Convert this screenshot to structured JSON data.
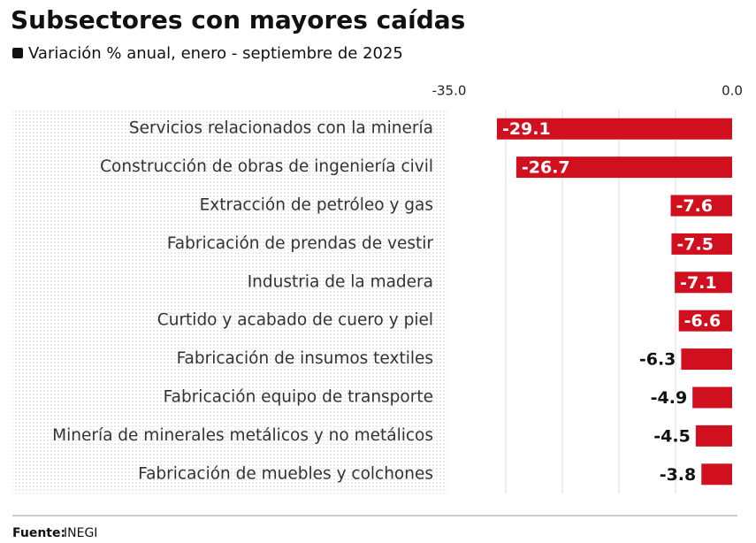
{
  "chart_data": {
    "type": "hbar",
    "title": "Subsectores con mayores caídas",
    "subtitle": "Variación % anual, enero - septiembre de 2025",
    "categories": [
      "Servicios relacionados con la minería",
      "Construcción de obras de ingeniería civil",
      "Extracción de petróleo y gas",
      "Fabricación de prendas de vestir",
      "Industria de la madera",
      "Curtido y acabado de cuero y piel",
      "Fabricación de insumos textiles",
      "Fabricación equipo de transporte",
      "Minería de minerales metálicos y no metálicos",
      "Fabricación de muebles y colchones"
    ],
    "values": [
      -29.1,
      -26.7,
      -7.6,
      -7.5,
      -7.1,
      -6.6,
      -6.3,
      -4.9,
      -4.5,
      -3.8
    ],
    "color": "#d0101f",
    "xlim": [
      -35,
      0
    ],
    "xticks": [
      {
        "value": -35,
        "label": "-35.0"
      },
      {
        "value": 0,
        "label": "0.0"
      }
    ],
    "grid_values": [
      -28,
      -21,
      -14,
      -7
    ],
    "source": {
      "label": "Fuente:",
      "text": "INEGI"
    }
  }
}
